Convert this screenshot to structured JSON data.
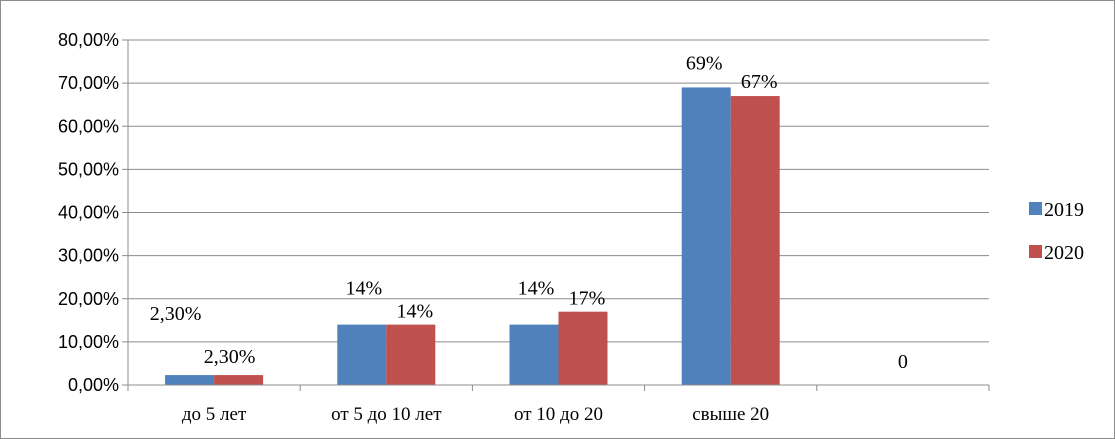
{
  "chart_data": {
    "type": "bar",
    "categories": [
      "до 5 лет",
      "от 5 до 10 лет",
      "от 10 до 20",
      "свыше 20",
      ""
    ],
    "series": [
      {
        "name": "2019",
        "values": [
          2.3,
          14,
          14,
          69,
          null
        ],
        "labels": [
          "2,30%",
          "14%",
          "14%",
          "69%",
          ""
        ]
      },
      {
        "name": "2020",
        "values": [
          2.3,
          14,
          17,
          67,
          null
        ],
        "labels": [
          "2,30%",
          "14%",
          "17%",
          "67%",
          ""
        ]
      }
    ],
    "extra_labels": [
      "0"
    ],
    "y_ticks": [
      "0,00%",
      "10,00%",
      "20,00%",
      "30,00%",
      "40,00%",
      "50,00%",
      "60,00%",
      "70,00%",
      "80,00%"
    ],
    "ylim": [
      0,
      80
    ],
    "grid": true,
    "legend": "right",
    "colors": [
      "#4f81bd",
      "#c0504d"
    ],
    "title": "",
    "xlabel": "",
    "ylabel": ""
  }
}
